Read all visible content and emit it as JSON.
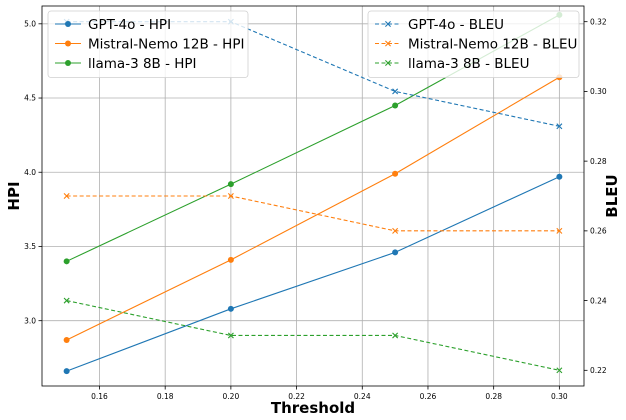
{
  "chart_data": {
    "type": "line",
    "xlabel": "Threshold",
    "ylabel_left": "HPI",
    "ylabel_right": "BLEU",
    "x": [
      0.15,
      0.2,
      0.25,
      0.3
    ],
    "xlim": [
      0.1425,
      0.3075
    ],
    "ylim_left": [
      2.56,
      5.12
    ],
    "ylim_right": [
      0.2155,
      0.3245
    ],
    "x_ticks": [
      0.16,
      0.18,
      0.2,
      0.22,
      0.24,
      0.26,
      0.28,
      0.3
    ],
    "x_tick_labels": [
      "0.16",
      "0.18",
      "0.20",
      "0.22",
      "0.24",
      "0.26",
      "0.28",
      "0.30"
    ],
    "y_left_ticks": [
      3.0,
      3.5,
      4.0,
      4.5,
      5.0
    ],
    "y_left_tick_labels": [
      "3.0",
      "3.5",
      "4.0",
      "4.5",
      "5.0"
    ],
    "y_right_ticks": [
      0.22,
      0.24,
      0.26,
      0.28,
      0.3,
      0.32
    ],
    "y_right_tick_labels": [
      "0.22",
      "0.24",
      "0.26",
      "0.28",
      "0.30",
      "0.32"
    ],
    "grid": true,
    "series": [
      {
        "name": "GPT-4o - HPI",
        "axis": "left",
        "style": "solid",
        "marker": "circle",
        "color": "#1f77b4",
        "values": [
          2.66,
          3.08,
          3.46,
          3.97
        ]
      },
      {
        "name": "Mistral-Nemo 12B - HPI",
        "axis": "left",
        "style": "solid",
        "marker": "circle",
        "color": "#ff7f0e",
        "values": [
          2.87,
          3.41,
          3.99,
          4.64
        ]
      },
      {
        "name": "llama-3 8B - HPI",
        "axis": "left",
        "style": "solid",
        "marker": "circle",
        "color": "#2ca02c",
        "values": [
          3.4,
          3.92,
          4.45,
          5.06
        ]
      },
      {
        "name": "GPT-4o - BLEU",
        "axis": "right",
        "style": "dashed",
        "marker": "x",
        "color": "#1f77b4",
        "values": [
          0.32,
          0.32,
          0.3,
          0.29
        ]
      },
      {
        "name": "Mistral-Nemo 12B - BLEU",
        "axis": "right",
        "style": "dashed",
        "marker": "x",
        "color": "#ff7f0e",
        "values": [
          0.27,
          0.27,
          0.26,
          0.26
        ]
      },
      {
        "name": "llama-3 8B - BLEU",
        "axis": "right",
        "style": "dashed",
        "marker": "x",
        "color": "#2ca02c",
        "values": [
          0.24,
          0.23,
          0.23,
          0.22
        ]
      }
    ],
    "legends": [
      {
        "position": "top-left",
        "entries": [
          "GPT-4o - HPI",
          "Mistral-Nemo 12B - HPI",
          "llama-3 8B - HPI"
        ]
      },
      {
        "position": "top-right",
        "entries": [
          "GPT-4o - BLEU",
          "Mistral-Nemo 12B - BLEU",
          "llama-3 8B - BLEU"
        ]
      }
    ]
  }
}
